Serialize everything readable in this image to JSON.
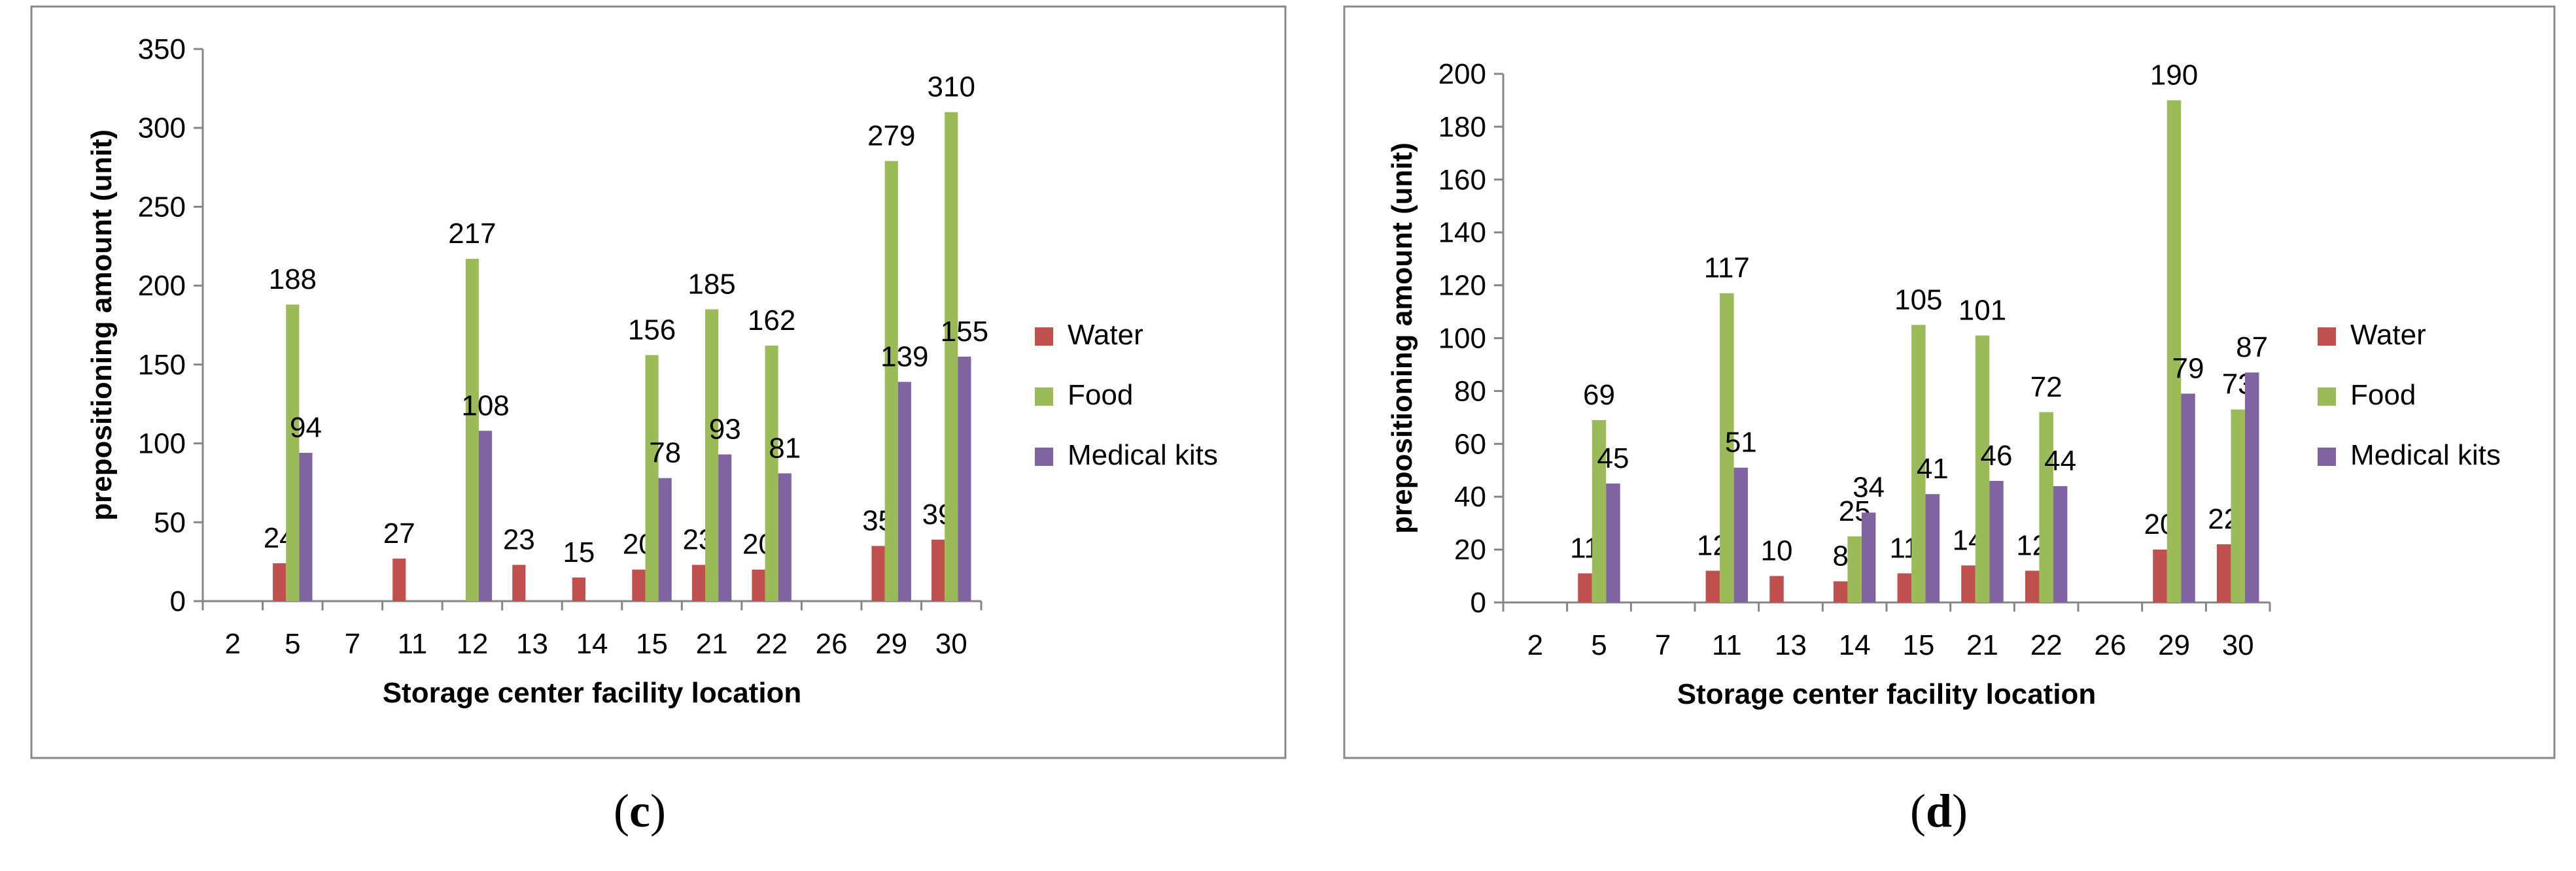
{
  "chart_data": [
    {
      "type": "bar",
      "panel_label": "c",
      "title": "",
      "xlabel": "Storage center facility location",
      "ylabel": "prepositioning amount (unit)",
      "ylim": [
        0,
        350
      ],
      "yticks": [
        0,
        50,
        100,
        150,
        200,
        250,
        300,
        350
      ],
      "categories": [
        "2",
        "5",
        "7",
        "11",
        "12",
        "13",
        "14",
        "15",
        "21",
        "22",
        "26",
        "29",
        "30"
      ],
      "series": [
        {
          "name": "Water",
          "color": "#c0504d",
          "values": [
            0,
            24,
            0,
            27,
            0,
            23,
            15,
            20,
            23,
            20,
            0,
            35,
            39
          ],
          "labels": [
            "",
            "24",
            "",
            "27",
            "",
            "23",
            "15",
            "20",
            "23",
            "20",
            "",
            "35",
            "39"
          ]
        },
        {
          "name": "Food",
          "color": "#9bbb59",
          "values": [
            0,
            188,
            0,
            0,
            217,
            0,
            0,
            156,
            185,
            162,
            0,
            279,
            310
          ],
          "labels": [
            "",
            "188",
            "",
            "",
            "217",
            "",
            "",
            "156",
            "185",
            "162",
            "",
            "279",
            "310"
          ]
        },
        {
          "name": "Medical kits",
          "color": "#8064a2",
          "values": [
            0,
            94,
            0,
            0,
            108,
            0,
            0,
            78,
            93,
            81,
            0,
            139,
            155
          ],
          "labels": [
            "",
            "94",
            "",
            "",
            "108",
            "",
            "",
            "78",
            "93",
            "81",
            "",
            "139",
            "155"
          ]
        }
      ],
      "legend_position": "right"
    },
    {
      "type": "bar",
      "panel_label": "d",
      "title": "",
      "xlabel": "Storage center facility location",
      "ylabel": "prepositioning amount (unit)",
      "ylim": [
        0,
        200
      ],
      "yticks": [
        0,
        20,
        40,
        60,
        80,
        100,
        120,
        140,
        160,
        180,
        200
      ],
      "categories": [
        "2",
        "5",
        "7",
        "11",
        "13",
        "14",
        "15",
        "21",
        "22",
        "26",
        "29",
        "30"
      ],
      "series": [
        {
          "name": "Water",
          "color": "#c0504d",
          "values": [
            0,
            11,
            0,
            12,
            10,
            8,
            11,
            14,
            12,
            0,
            20,
            22
          ],
          "labels": [
            "",
            "11",
            "",
            "12",
            "10",
            "8",
            "11",
            "14",
            "12",
            "",
            "20",
            "22"
          ]
        },
        {
          "name": "Food",
          "color": "#9bbb59",
          "values": [
            0,
            69,
            0,
            117,
            0,
            25,
            105,
            101,
            72,
            0,
            190,
            73
          ],
          "labels": [
            "",
            "69",
            "",
            "117",
            "",
            "25",
            "105",
            "101",
            "72",
            "",
            "190",
            "73"
          ]
        },
        {
          "name": "Medical kits",
          "color": "#8064a2",
          "values": [
            0,
            45,
            0,
            51,
            0,
            34,
            41,
            46,
            44,
            0,
            79,
            87
          ],
          "labels": [
            "",
            "45",
            "",
            "51",
            "",
            "34",
            "41",
            "46",
            "44",
            "",
            "79",
            "87"
          ]
        }
      ],
      "legend_position": "right"
    }
  ]
}
